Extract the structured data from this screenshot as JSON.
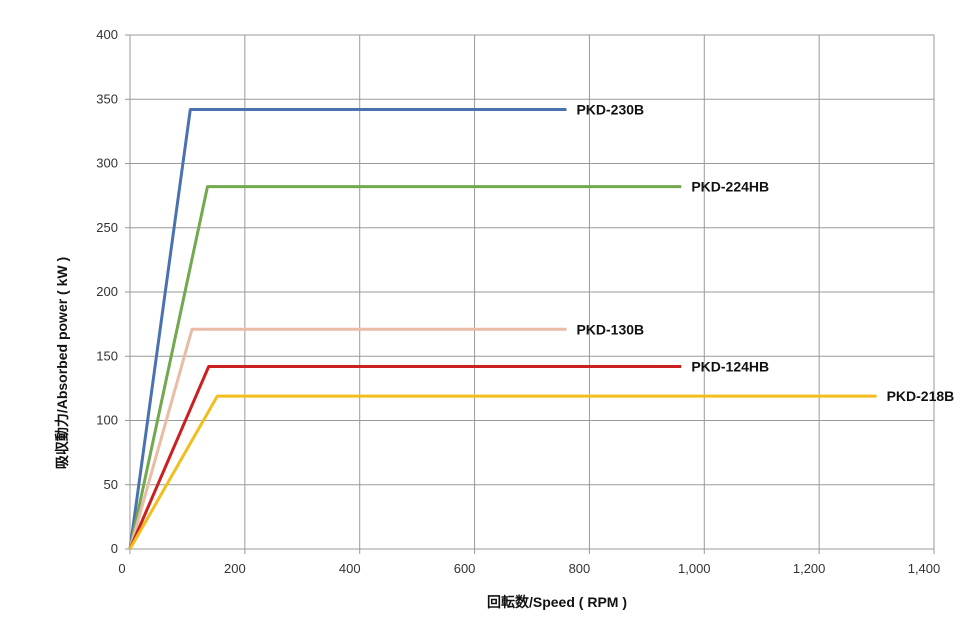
{
  "chart_data": {
    "type": "line",
    "title": "",
    "xlabel": "回転数/Speed ( RPM )",
    "ylabel": "吸収動力/Absorbed power ( kW )",
    "xlim": [
      0,
      1400
    ],
    "ylim": [
      0,
      400
    ],
    "x_ticks": [
      0,
      200,
      400,
      600,
      800,
      1000,
      1200,
      1400
    ],
    "x_tick_labels": [
      "0",
      "200",
      "400",
      "600",
      "800",
      "1,000",
      "1,200",
      "1,400"
    ],
    "y_ticks": [
      0,
      50,
      100,
      150,
      200,
      250,
      300,
      350,
      400
    ],
    "y_tick_labels": [
      "0",
      "50",
      "100",
      "150",
      "200",
      "250",
      "300",
      "350",
      "400"
    ],
    "grid": true,
    "legend": "inline-labels-at-line-ends",
    "series": [
      {
        "name": "PKD-230B",
        "color": "#4a72b0",
        "points": [
          [
            0,
            0
          ],
          [
            105,
            342
          ],
          [
            760,
            342
          ]
        ]
      },
      {
        "name": "PKD-224HB",
        "color": "#72a84e",
        "points": [
          [
            0,
            0
          ],
          [
            135,
            282
          ],
          [
            960,
            282
          ]
        ]
      },
      {
        "name": "PKD-130B",
        "color": "#e9bca5",
        "points": [
          [
            0,
            0
          ],
          [
            108,
            171
          ],
          [
            760,
            171
          ]
        ]
      },
      {
        "name": "PKD-124HB",
        "color": "#cc1f1f",
        "points": [
          [
            0,
            0
          ],
          [
            137,
            142
          ],
          [
            960,
            142
          ]
        ]
      },
      {
        "name": "PKD-218B",
        "color": "#f2be1c",
        "points": [
          [
            0,
            0
          ],
          [
            152,
            119
          ],
          [
            1300,
            119
          ]
        ]
      }
    ]
  }
}
